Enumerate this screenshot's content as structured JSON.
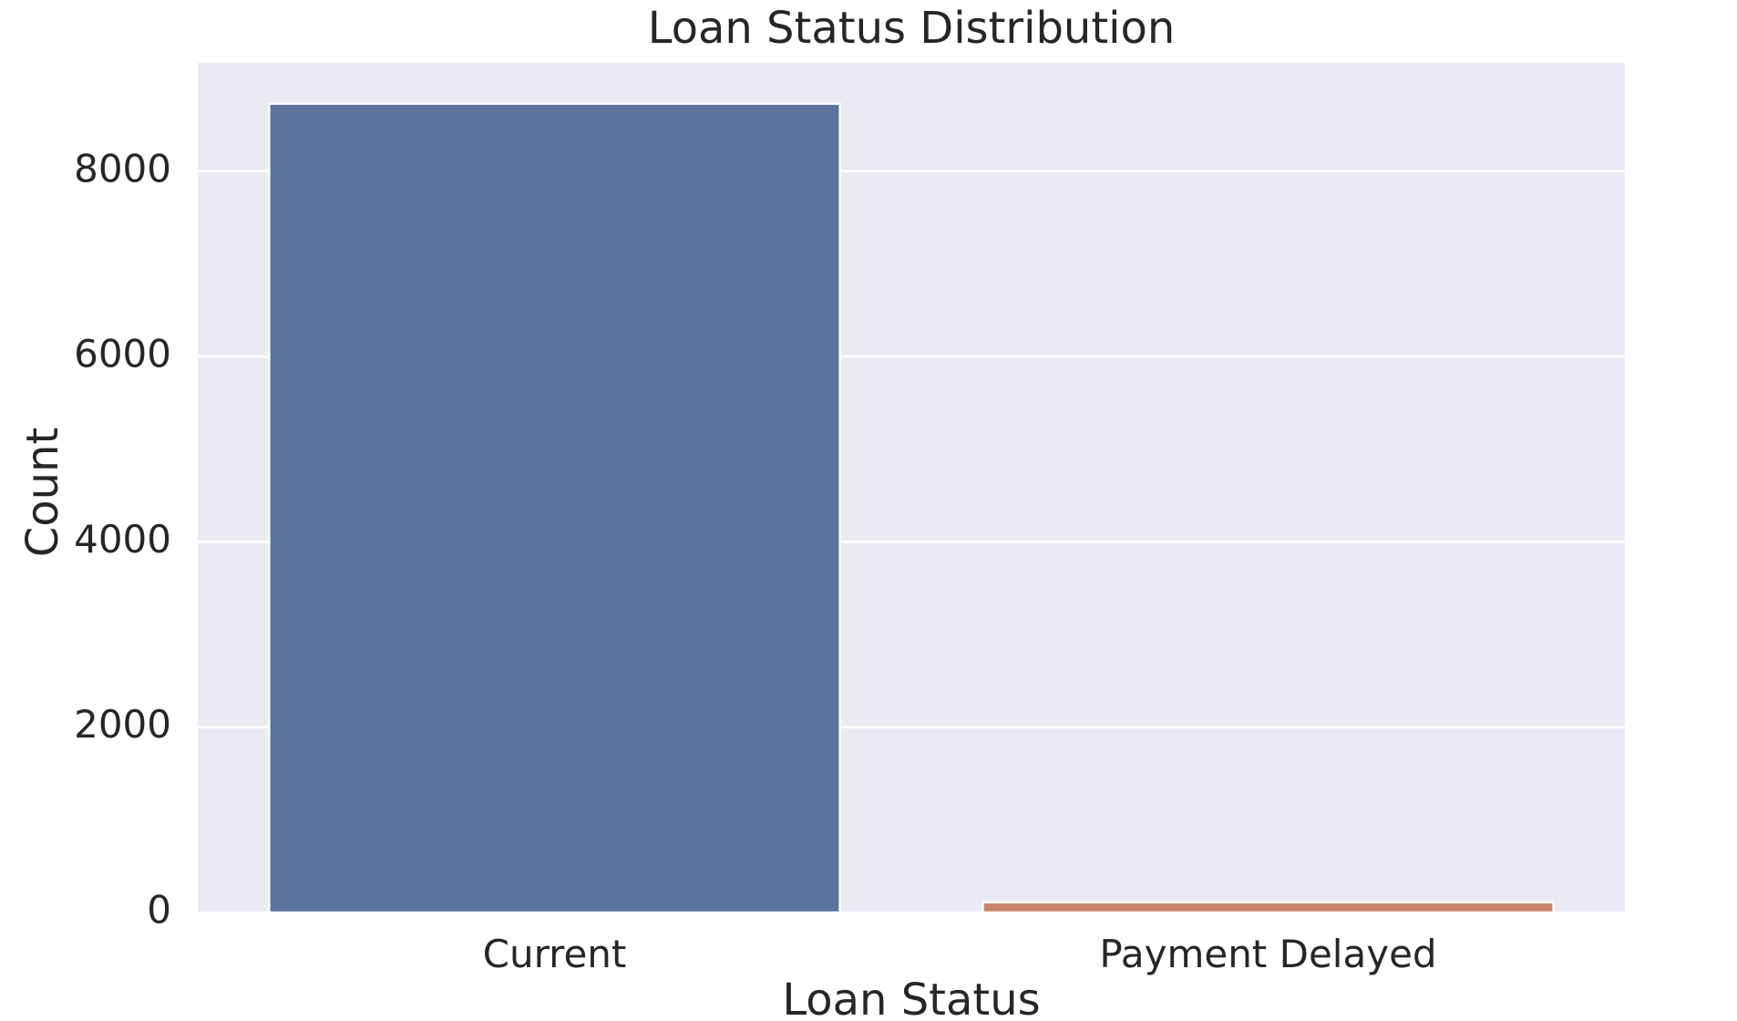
{
  "chart_data": {
    "type": "bar",
    "title": "Loan Status Distribution",
    "xlabel": "Loan Status",
    "ylabel": "Count",
    "categories": [
      "Current",
      "Payment Delayed"
    ],
    "values": [
      8730,
      110
    ],
    "ylim": [
      0,
      9170
    ],
    "yticks": [
      0,
      2000,
      4000,
      6000,
      8000
    ],
    "grid": true,
    "colors": {
      "bars": [
        "#5e74a0",
        "#c7876a"
      ],
      "plot_background": "#eaeaf2",
      "gridline": "#ffffff",
      "text": "#262626"
    }
  }
}
